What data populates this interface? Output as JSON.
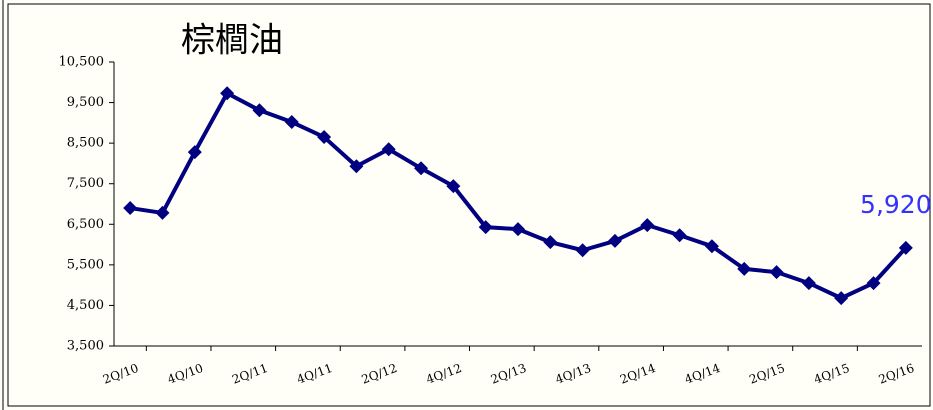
{
  "chart_data": {
    "type": "line",
    "title": "棕櫚油",
    "categories": [
      "2Q/10",
      null,
      "4Q/10",
      null,
      "2Q/11",
      null,
      "4Q/11",
      null,
      "2Q/12",
      null,
      "4Q/12",
      null,
      "2Q/13",
      null,
      "4Q/13",
      null,
      "2Q/14",
      null,
      "4Q/14",
      null,
      "2Q/15",
      null,
      "4Q/15",
      null,
      "2Q/16"
    ],
    "series": [
      {
        "color": "#000080",
        "values": [
          6900,
          6780,
          8280,
          9730,
          9310,
          9020,
          8650,
          7930,
          8350,
          7880,
          7440,
          6430,
          6380,
          6060,
          5860,
          6090,
          6480,
          6230,
          5960,
          5400,
          5320,
          5050,
          4680,
          5050,
          5920
        ],
        "value_labels": [
          null,
          null,
          null,
          null,
          null,
          null,
          null,
          null,
          null,
          null,
          null,
          null,
          null,
          null,
          null,
          null,
          null,
          null,
          null,
          null,
          null,
          null,
          null,
          null,
          "5,920"
        ]
      }
    ],
    "value_label_color": "#3333ff",
    "ylim": [
      3500,
      10500
    ],
    "yticks": [
      {
        "value": 3500,
        "label": "3,500"
      },
      {
        "value": 4500,
        "label": "4,500"
      },
      {
        "value": 5500,
        "label": "5,500"
      },
      {
        "value": 6500,
        "label": "6,500"
      },
      {
        "value": 7500,
        "label": "7,500"
      },
      {
        "value": 8500,
        "label": "8,500"
      },
      {
        "value": 9500,
        "label": "9,500"
      },
      {
        "value": 10500,
        "label": "10,500"
      }
    ],
    "grid": false
  }
}
